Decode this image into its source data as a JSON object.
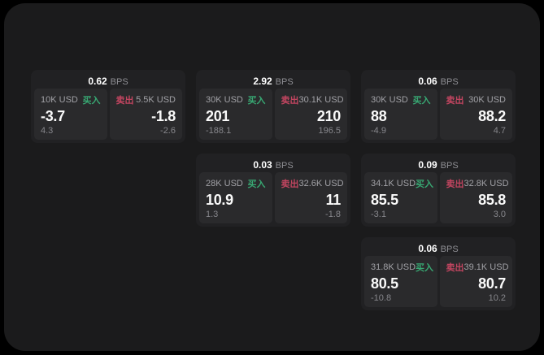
{
  "labels": {
    "bps": "BPS",
    "buy": "买入",
    "sell": "卖出"
  },
  "colors": {
    "outer_bg": "#000000",
    "surface_bg": "#1b1b1c",
    "card_bg": "#212123",
    "tile_bg": "#2a2a2c",
    "buy_green": "#38a873",
    "sell_red": "#c24560",
    "value_white": "#fafafa",
    "label_gray": "#a1a1a6",
    "dim_gray": "#87878c"
  },
  "cards": [
    {
      "row": 1,
      "col": 1,
      "bps": "0.62",
      "buy": {
        "amount": "10K USD",
        "price": "-3.7",
        "delta": "4.3"
      },
      "sell": {
        "amount": "5.5K USD",
        "price": "-1.8",
        "delta": "-2.6"
      }
    },
    {
      "row": 1,
      "col": 2,
      "bps": "2.92",
      "buy": {
        "amount": "30K USD",
        "price": "201",
        "delta": "-188.1"
      },
      "sell": {
        "amount": "30.1K USD",
        "price": "210",
        "delta": "196.5"
      }
    },
    {
      "row": 1,
      "col": 3,
      "bps": "0.06",
      "buy": {
        "amount": "30K USD",
        "price": "88",
        "delta": "-4.9"
      },
      "sell": {
        "amount": "30K USD",
        "price": "88.2",
        "delta": "4.7"
      }
    },
    {
      "row": 2,
      "col": 2,
      "bps": "0.03",
      "buy": {
        "amount": "28K USD",
        "price": "10.9",
        "delta": "1.3"
      },
      "sell": {
        "amount": "32.6K USD",
        "price": "11",
        "delta": "-1.8"
      }
    },
    {
      "row": 2,
      "col": 3,
      "bps": "0.09",
      "buy": {
        "amount": "34.1K USD",
        "price": "85.5",
        "delta": "-3.1"
      },
      "sell": {
        "amount": "32.8K USD",
        "price": "85.8",
        "delta": "3.0"
      }
    },
    {
      "row": 3,
      "col": 3,
      "bps": "0.06",
      "buy": {
        "amount": "31.8K USD",
        "price": "80.5",
        "delta": "-10.8"
      },
      "sell": {
        "amount": "39.1K USD",
        "price": "80.7",
        "delta": "10.2"
      }
    }
  ]
}
